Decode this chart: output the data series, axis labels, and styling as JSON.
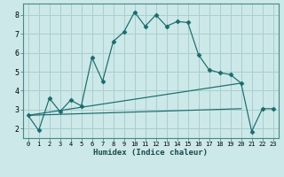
{
  "title": "",
  "xlabel": "Humidex (Indice chaleur)",
  "background_color": "#cce8e8",
  "grid_color": "#aacece",
  "line_color": "#1a6b6b",
  "xlim": [
    -0.5,
    23.5
  ],
  "ylim": [
    1.5,
    8.6
  ],
  "xticks": [
    0,
    1,
    2,
    3,
    4,
    5,
    6,
    7,
    8,
    9,
    10,
    11,
    12,
    13,
    14,
    15,
    16,
    17,
    18,
    19,
    20,
    21,
    22,
    23
  ],
  "yticks": [
    2,
    3,
    4,
    5,
    6,
    7,
    8
  ],
  "line1_x": [
    0,
    1,
    2,
    3,
    4,
    5,
    6,
    7,
    8,
    9,
    10,
    11,
    12,
    13,
    14,
    15,
    16,
    17,
    18,
    19,
    20,
    21,
    22,
    23
  ],
  "line1_y": [
    2.7,
    1.9,
    3.6,
    2.9,
    3.5,
    3.2,
    5.75,
    4.5,
    6.6,
    7.1,
    8.15,
    7.4,
    8.0,
    7.4,
    7.65,
    7.6,
    5.9,
    5.1,
    4.95,
    4.85,
    4.4,
    1.85,
    3.05,
    3.05
  ],
  "line2_x": [
    0,
    20
  ],
  "line2_y": [
    2.7,
    3.05
  ],
  "line3_x": [
    0,
    20
  ],
  "line3_y": [
    2.7,
    4.4
  ],
  "figsize": [
    3.2,
    2.0
  ],
  "dpi": 100
}
